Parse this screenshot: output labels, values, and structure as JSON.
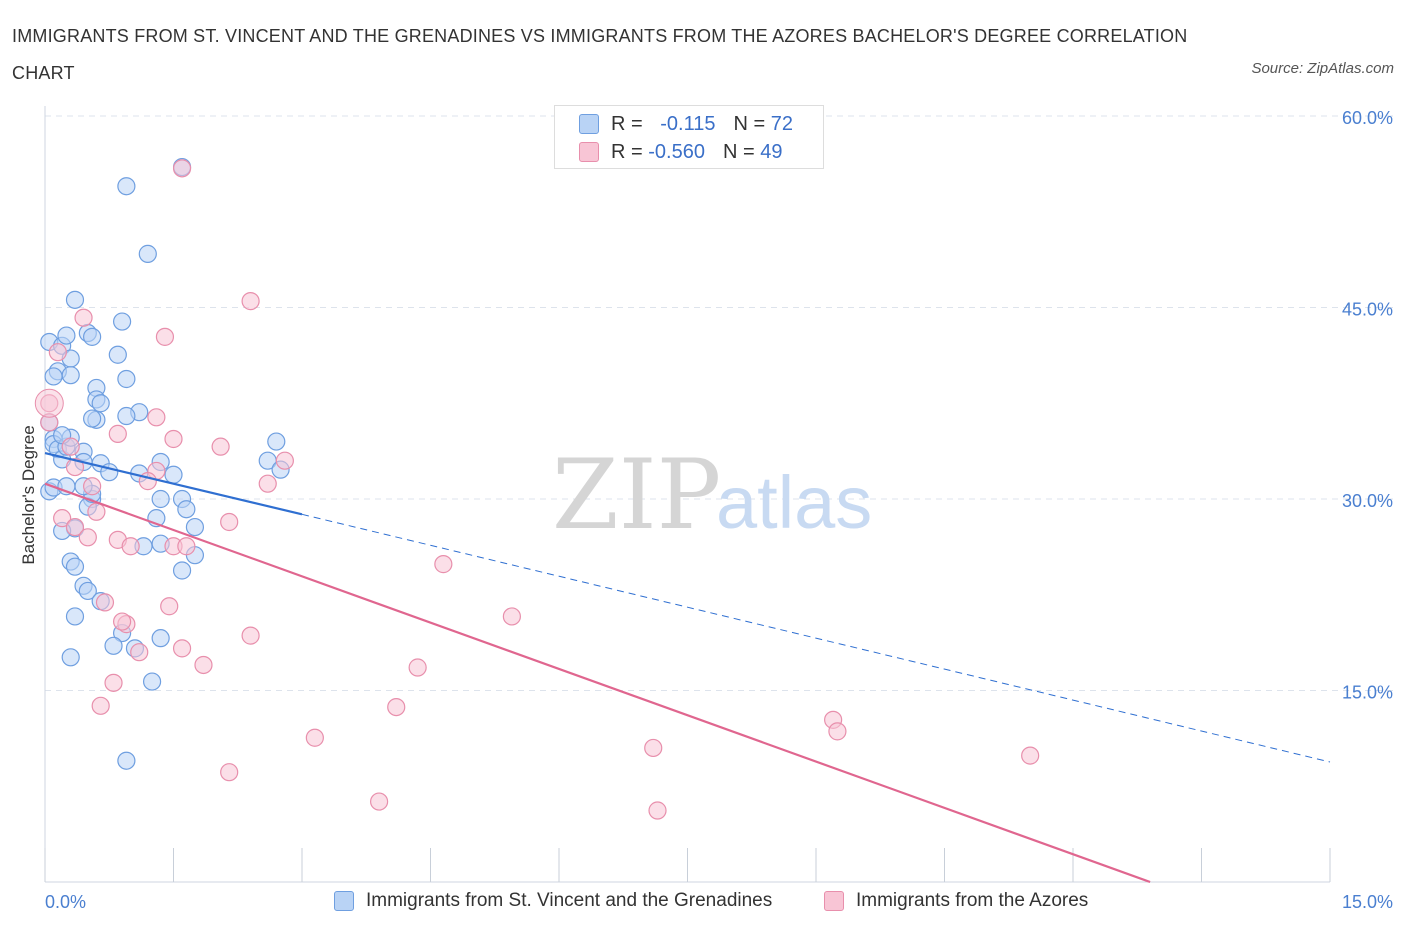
{
  "title": "IMMIGRANTS FROM ST. VINCENT AND THE GRENADINES VS IMMIGRANTS FROM THE AZORES BACHELOR'S DEGREE CORRELATION CHART",
  "source": "Source: ZipAtlas.com",
  "watermark": {
    "zip": "ZIP",
    "atlas": "atlas"
  },
  "legend": {
    "series1": {
      "r_label": "R = ",
      "r_value": "-0.115",
      "n_label": "N = ",
      "n_value": "72"
    },
    "series2": {
      "r_label": "R = ",
      "r_value": "-0.560",
      "n_label": "N = ",
      "n_value": "49"
    }
  },
  "colors": {
    "blue_fill": "#b9d3f5",
    "blue_stroke": "#6f9fe0",
    "blue_line": "#2f6fd1",
    "pink_fill": "#f8c5d5",
    "pink_stroke": "#e88fac",
    "pink_line": "#e0668f",
    "grid": "#dde3ec",
    "axis_text": "#4a7fd0"
  },
  "chart_data": {
    "type": "scatter",
    "title": "IMMIGRANTS FROM ST. VINCENT AND THE GRENADINES VS IMMIGRANTS FROM THE AZORES BACHELOR'S DEGREE CORRELATION CHART",
    "xlabel": "",
    "ylabel": "Bachelor's Degree",
    "xlim": [
      0,
      15
    ],
    "ylim": [
      0,
      60
    ],
    "x_tick_labels": [
      "0.0%",
      "15.0%"
    ],
    "y_tick_labels": [
      "15.0%",
      "30.0%",
      "45.0%",
      "60.0%"
    ],
    "y_ticks": [
      15,
      30,
      45,
      60
    ],
    "series": [
      {
        "name": "Immigrants from St. Vincent and the Grenadines",
        "color": "blue",
        "trend": {
          "x_start": 0.0,
          "y_start": 33.6,
          "x_end": 3.0,
          "y_end": 28.8,
          "dashed_to_x": 15.0,
          "dashed_to_y": 9.4
        },
        "points": [
          [
            0.05,
            42.3
          ],
          [
            0.15,
            40.0
          ],
          [
            0.1,
            39.6
          ],
          [
            0.2,
            42.0
          ],
          [
            0.25,
            42.8
          ],
          [
            0.3,
            41.0
          ],
          [
            0.3,
            39.7
          ],
          [
            0.35,
            45.6
          ],
          [
            0.5,
            43.0
          ],
          [
            0.55,
            42.7
          ],
          [
            0.6,
            38.7
          ],
          [
            0.6,
            37.8
          ],
          [
            0.65,
            37.5
          ],
          [
            0.6,
            36.2
          ],
          [
            0.85,
            41.3
          ],
          [
            0.9,
            43.9
          ],
          [
            0.95,
            39.4
          ],
          [
            0.95,
            54.5
          ],
          [
            1.1,
            36.8
          ],
          [
            1.2,
            49.2
          ],
          [
            1.6,
            56.0
          ],
          [
            0.05,
            36.0
          ],
          [
            0.1,
            34.7
          ],
          [
            0.1,
            34.3
          ],
          [
            0.15,
            33.9
          ],
          [
            0.2,
            33.1
          ],
          [
            0.25,
            34.1
          ],
          [
            0.3,
            34.8
          ],
          [
            0.45,
            33.7
          ],
          [
            0.45,
            32.9
          ],
          [
            0.55,
            30.0
          ],
          [
            0.65,
            32.8
          ],
          [
            0.75,
            32.1
          ],
          [
            1.1,
            32.0
          ],
          [
            1.35,
            32.9
          ],
          [
            1.5,
            31.9
          ],
          [
            1.6,
            30.0
          ],
          [
            1.35,
            30.0
          ],
          [
            1.3,
            28.5
          ],
          [
            1.65,
            29.2
          ],
          [
            1.75,
            27.8
          ],
          [
            0.05,
            30.6
          ],
          [
            0.1,
            30.9
          ],
          [
            0.25,
            31.0
          ],
          [
            0.35,
            27.7
          ],
          [
            0.2,
            27.5
          ],
          [
            0.5,
            29.4
          ],
          [
            0.55,
            30.4
          ],
          [
            0.45,
            31.0
          ],
          [
            1.15,
            26.3
          ],
          [
            1.35,
            26.5
          ],
          [
            1.75,
            25.6
          ],
          [
            1.6,
            24.4
          ],
          [
            0.3,
            25.1
          ],
          [
            0.35,
            24.7
          ],
          [
            0.45,
            23.2
          ],
          [
            0.5,
            22.8
          ],
          [
            0.65,
            22.0
          ],
          [
            0.35,
            20.8
          ],
          [
            0.9,
            19.5
          ],
          [
            0.8,
            18.5
          ],
          [
            1.05,
            18.3
          ],
          [
            1.35,
            19.1
          ],
          [
            0.3,
            17.6
          ],
          [
            1.25,
            15.7
          ],
          [
            0.95,
            9.5
          ],
          [
            2.6,
            33.0
          ],
          [
            2.7,
            34.5
          ],
          [
            2.75,
            32.3
          ],
          [
            0.55,
            36.3
          ],
          [
            0.95,
            36.5
          ],
          [
            0.2,
            35.0
          ]
        ]
      },
      {
        "name": "Immigrants from the Azores",
        "color": "pink",
        "trend": {
          "x_start": 0.0,
          "y_start": 31.2,
          "x_end": 12.9,
          "y_end": 0.0
        },
        "points": [
          [
            0.05,
            37.5
          ],
          [
            0.05,
            36.0
          ],
          [
            0.15,
            41.5
          ],
          [
            0.45,
            44.2
          ],
          [
            1.4,
            42.7
          ],
          [
            2.4,
            45.5
          ],
          [
            1.6,
            55.9
          ],
          [
            0.85,
            35.1
          ],
          [
            1.3,
            36.4
          ],
          [
            1.5,
            34.7
          ],
          [
            2.05,
            34.1
          ],
          [
            0.3,
            34.1
          ],
          [
            0.35,
            32.5
          ],
          [
            1.3,
            32.2
          ],
          [
            1.2,
            31.4
          ],
          [
            2.8,
            33.0
          ],
          [
            2.6,
            31.2
          ],
          [
            0.55,
            31.0
          ],
          [
            0.6,
            29.0
          ],
          [
            0.2,
            28.5
          ],
          [
            0.35,
            27.8
          ],
          [
            0.5,
            27.0
          ],
          [
            0.85,
            26.8
          ],
          [
            1.0,
            26.3
          ],
          [
            1.5,
            26.3
          ],
          [
            1.65,
            26.3
          ],
          [
            2.15,
            28.2
          ],
          [
            4.65,
            24.9
          ],
          [
            5.45,
            20.8
          ],
          [
            0.7,
            21.9
          ],
          [
            1.45,
            21.6
          ],
          [
            0.95,
            20.2
          ],
          [
            0.9,
            20.4
          ],
          [
            2.4,
            19.3
          ],
          [
            1.6,
            18.3
          ],
          [
            1.1,
            18.0
          ],
          [
            1.85,
            17.0
          ],
          [
            4.35,
            16.8
          ],
          [
            0.8,
            15.6
          ],
          [
            0.65,
            13.8
          ],
          [
            4.1,
            13.7
          ],
          [
            3.15,
            11.3
          ],
          [
            7.1,
            10.5
          ],
          [
            9.2,
            12.7
          ],
          [
            9.25,
            11.8
          ],
          [
            11.5,
            9.9
          ],
          [
            2.15,
            8.6
          ],
          [
            3.9,
            6.3
          ],
          [
            7.15,
            5.6
          ]
        ]
      }
    ],
    "legend_position": "top-center"
  },
  "bottom_legend": {
    "item1": "Immigrants from St. Vincent and the Grenadines",
    "item2": "Immigrants from the Azores"
  }
}
